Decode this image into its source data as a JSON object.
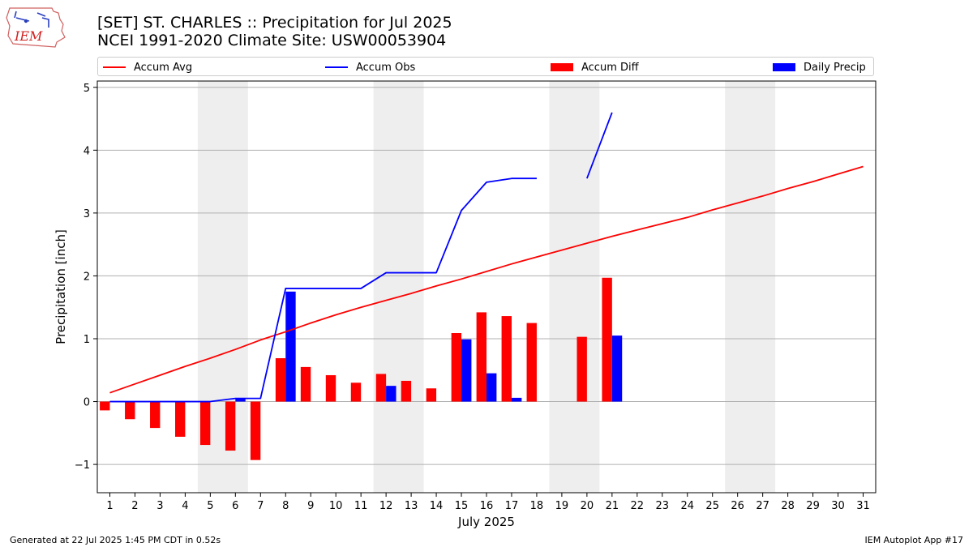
{
  "header": {
    "logo_text": "IEM",
    "title_line1": "[SET] ST. CHARLES :: Precipitation for Jul 2025",
    "title_line2": "NCEI 1991-2020 Climate Site: USW00053904"
  },
  "footer": {
    "left": "Generated at 22 Jul 2025 1:45 PM CDT in 0.52s",
    "right": "IEM Autoplot App #17"
  },
  "colors": {
    "avg": "#ff0000",
    "obs": "#0000ff",
    "diff": "#ff0000",
    "daily": "#0000ff",
    "weekend": "#eeeeee",
    "grid": "#b0b0b0"
  },
  "chart_data": {
    "type": "bar",
    "xlabel": "July 2025",
    "ylabel": "Precipitation [inch]",
    "xlim": [
      0.5,
      31.5
    ],
    "ylim": [
      -1.45,
      5.1
    ],
    "yticks": [
      -1,
      0,
      1,
      2,
      3,
      4,
      5
    ],
    "ytick_labels": [
      "−1",
      "0",
      "1",
      "2",
      "3",
      "4",
      "5"
    ],
    "days": [
      1,
      2,
      3,
      4,
      5,
      6,
      7,
      8,
      9,
      10,
      11,
      12,
      13,
      14,
      15,
      16,
      17,
      18,
      19,
      20,
      21,
      22,
      23,
      24,
      25,
      26,
      27,
      28,
      29,
      30,
      31
    ],
    "grid": true,
    "legend_position": "top",
    "weekend_spans": [
      [
        4.5,
        6.5
      ],
      [
        11.5,
        13.5
      ],
      [
        18.5,
        20.5
      ],
      [
        25.5,
        27.5
      ]
    ],
    "series": [
      {
        "name": "Accum Avg",
        "kind": "line",
        "x": [
          1,
          2,
          3,
          4,
          5,
          6,
          7,
          8,
          9,
          10,
          11,
          12,
          13,
          14,
          15,
          16,
          17,
          18,
          19,
          20,
          21,
          22,
          23,
          24,
          25,
          26,
          27,
          28,
          29,
          30,
          31
        ],
        "values": [
          0.14,
          0.28,
          0.42,
          0.56,
          0.69,
          0.83,
          0.98,
          1.11,
          1.25,
          1.38,
          1.5,
          1.61,
          1.72,
          1.84,
          1.95,
          2.07,
          2.19,
          2.3,
          2.41,
          2.52,
          2.63,
          2.73,
          2.83,
          2.93,
          3.05,
          3.16,
          3.27,
          3.39,
          3.5,
          3.62,
          3.74
        ]
      },
      {
        "name": "Accum Obs",
        "kind": "line",
        "x": [
          1,
          2,
          3,
          4,
          5,
          6,
          7,
          8,
          9,
          10,
          11,
          12,
          13,
          14,
          15,
          16,
          17,
          18,
          19,
          20,
          21
        ],
        "values": [
          0,
          0,
          0,
          0,
          0,
          0.05,
          0.05,
          1.8,
          1.8,
          1.8,
          1.8,
          2.05,
          2.05,
          2.05,
          3.04,
          3.49,
          3.55,
          3.55,
          null,
          3.55,
          4.6
        ]
      },
      {
        "name": "Accum Diff",
        "kind": "bar",
        "x": [
          1,
          2,
          3,
          4,
          5,
          6,
          7,
          8,
          9,
          10,
          11,
          12,
          13,
          14,
          15,
          16,
          17,
          18,
          20,
          21
        ],
        "values": [
          -0.14,
          -0.28,
          -0.42,
          -0.56,
          -0.69,
          -0.78,
          -0.93,
          0.69,
          0.55,
          0.42,
          0.3,
          0.44,
          0.33,
          0.21,
          1.09,
          1.42,
          1.36,
          1.25,
          1.03,
          1.97
        ]
      },
      {
        "name": "Daily Precip",
        "kind": "bar",
        "x": [
          6,
          8,
          12,
          15,
          16,
          17,
          21
        ],
        "values": [
          0.05,
          1.75,
          0.25,
          0.99,
          0.45,
          0.06,
          1.05
        ]
      }
    ]
  }
}
